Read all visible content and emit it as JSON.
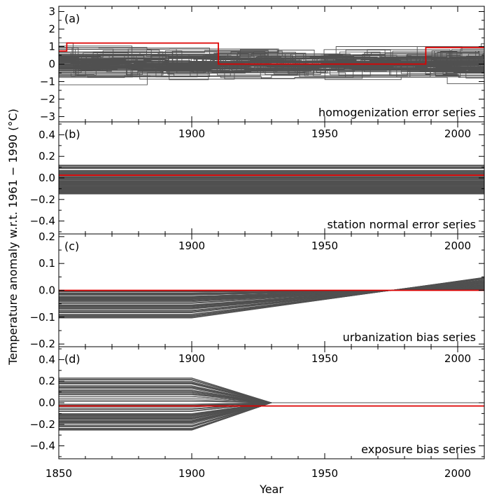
{
  "chart_data": {
    "type": "line",
    "xlabel": "Year",
    "ylabel": "Temperature anomaly w.r.t. 1961 − 1990 (°C)",
    "xlim": [
      1850,
      2010
    ],
    "xticks": [
      "1850",
      "1900",
      "1950",
      "2000"
    ],
    "xticks_inner": [
      "1900",
      "1950",
      "2000"
    ],
    "series_color": "#505050",
    "highlight_color": "#dd0000",
    "panels": [
      {
        "label": "(a)",
        "caption": "homogenization error series",
        "ylim": [
          -3.3,
          3.3
        ],
        "yticks": [
          "−3",
          "−2",
          "−1",
          "0",
          "1",
          "2",
          "3"
        ],
        "ytick_values": [
          -3,
          -2,
          -1,
          0,
          1,
          2,
          3
        ],
        "ensemble": {
          "members": 100,
          "kind": "step",
          "spread": 0.45,
          "max_abs": 1.5
        },
        "highlight": {
          "x": [
            1850,
            1853,
            1853,
            1910,
            1910,
            1988,
            1988,
            2010
          ],
          "y": [
            0.75,
            0.75,
            1.2,
            1.2,
            0.0,
            0.0,
            0.95,
            0.95
          ]
        }
      },
      {
        "label": "(b)",
        "caption": "station normal error series",
        "ylim": [
          -0.52,
          0.52
        ],
        "yticks": [
          "−0.4",
          "−0.2",
          "0.0",
          "0.2",
          "0.4"
        ],
        "ytick_values": [
          -0.4,
          -0.2,
          0.0,
          0.2,
          0.4
        ],
        "ensemble": {
          "members": 100,
          "kind": "constant",
          "min": -0.15,
          "max": 0.12
        },
        "highlight": {
          "x": [
            1850,
            2010
          ],
          "y": [
            0.025,
            0.025
          ]
        }
      },
      {
        "label": "(c)",
        "caption": "urbanization bias series",
        "ylim": [
          -0.21,
          0.21
        ],
        "yticks": [
          "−0.2",
          "−0.1",
          "0.0",
          "0.1",
          "0.2"
        ],
        "ytick_values": [
          -0.2,
          -0.1,
          0.0,
          0.1,
          0.2
        ],
        "ensemble": {
          "members": 100,
          "kind": "urban",
          "min": -0.105,
          "max": 0.0,
          "knee": 1900,
          "zero": 1975
        },
        "highlight": {
          "x": [
            1850,
            2010
          ],
          "y": [
            0.0,
            0.0
          ]
        }
      },
      {
        "label": "(d)",
        "caption": "exposure bias series",
        "ylim": [
          -0.52,
          0.52
        ],
        "yticks": [
          "−0.4",
          "−0.2",
          "0.0",
          "0.2",
          "0.4"
        ],
        "ytick_values": [
          -0.4,
          -0.2,
          0.0,
          0.2,
          0.4
        ],
        "ensemble": {
          "members": 100,
          "kind": "exposure",
          "min": -0.26,
          "max": 0.23,
          "knee": 1900,
          "zero": 1930
        },
        "highlight": {
          "x": [
            1850,
            2010
          ],
          "y": [
            -0.03,
            -0.03
          ]
        }
      }
    ]
  }
}
